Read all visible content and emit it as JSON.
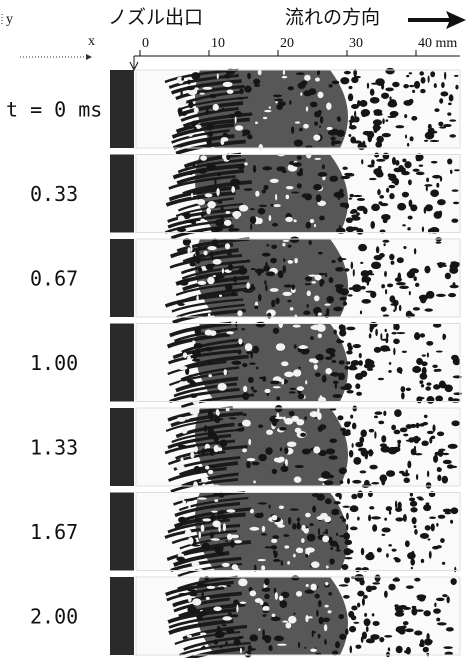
{
  "header": {
    "y_label": "y",
    "x_label": "x",
    "nozzle_label": "ノズル出口",
    "flow_label": "流れの方向"
  },
  "scale": {
    "ticks": [
      0,
      10,
      20,
      30,
      {
        "value": 40,
        "label": "40 mm"
      }
    ]
  },
  "frames": [
    {
      "label": "t = 0 ms"
    },
    {
      "label": "0.33"
    },
    {
      "label": "0.67"
    },
    {
      "label": "1.00"
    },
    {
      "label": "1.33"
    },
    {
      "label": "1.67"
    },
    {
      "label": "2.00"
    }
  ]
}
